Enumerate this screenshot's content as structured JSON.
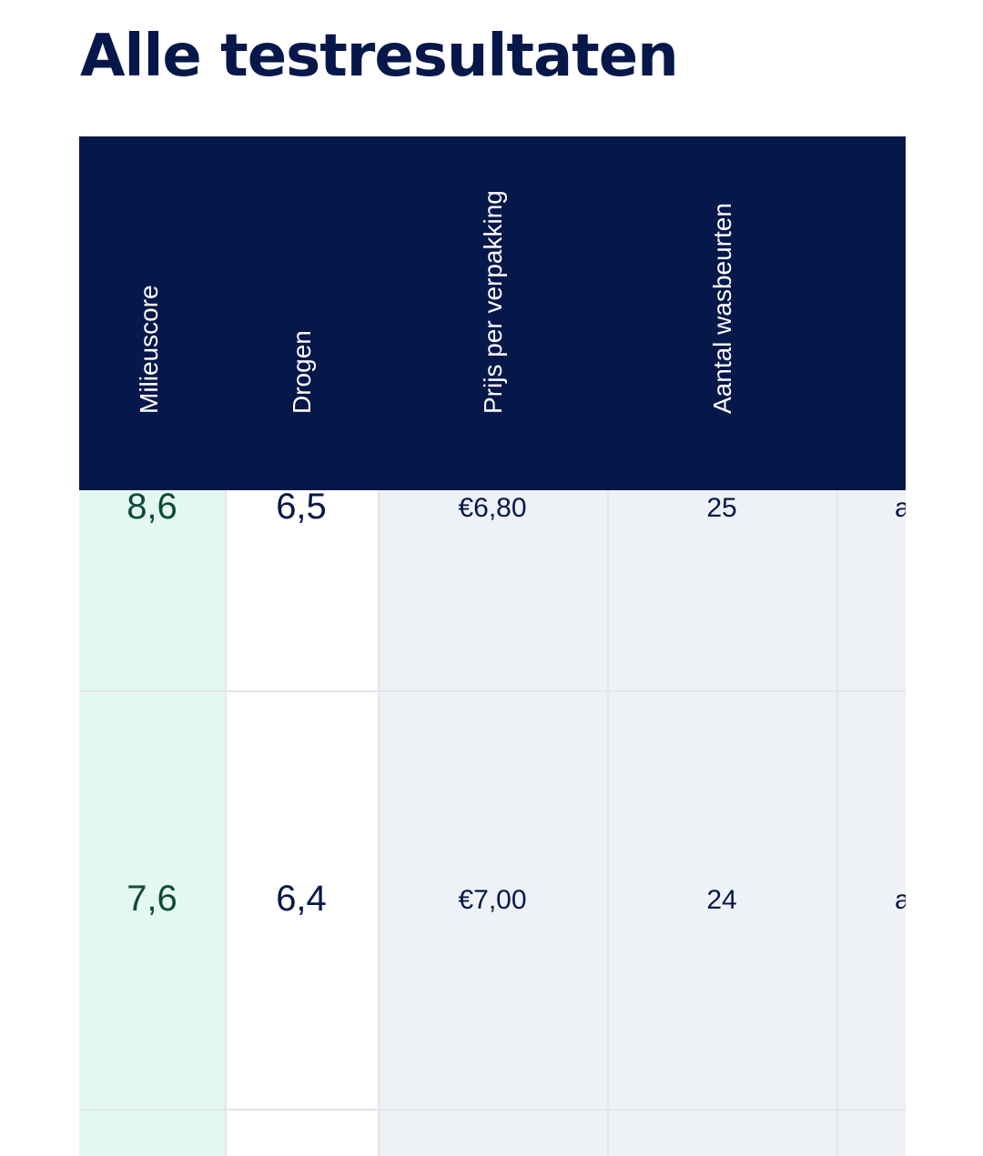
{
  "page": {
    "title": "Alle testresultaten"
  },
  "table": {
    "headers": {
      "milieuscore": "Milieuscore",
      "drogen": "Drogen",
      "prijs": "Prijs per verpakking",
      "aantal": "Aantal wasbeurten"
    },
    "rows": [
      {
        "milieuscore": "8,6",
        "drogen": "6,5",
        "prijs": "€6,80",
        "aantal": "25",
        "extra": "a"
      },
      {
        "milieuscore": "7,6",
        "drogen": "6,4",
        "prijs": "€7,00",
        "aantal": "24",
        "extra": "a"
      }
    ]
  },
  "colors": {
    "header_bg": "#06174a",
    "milieu_bg": "#e3f9f0",
    "body_bg": "#eef2f6"
  }
}
